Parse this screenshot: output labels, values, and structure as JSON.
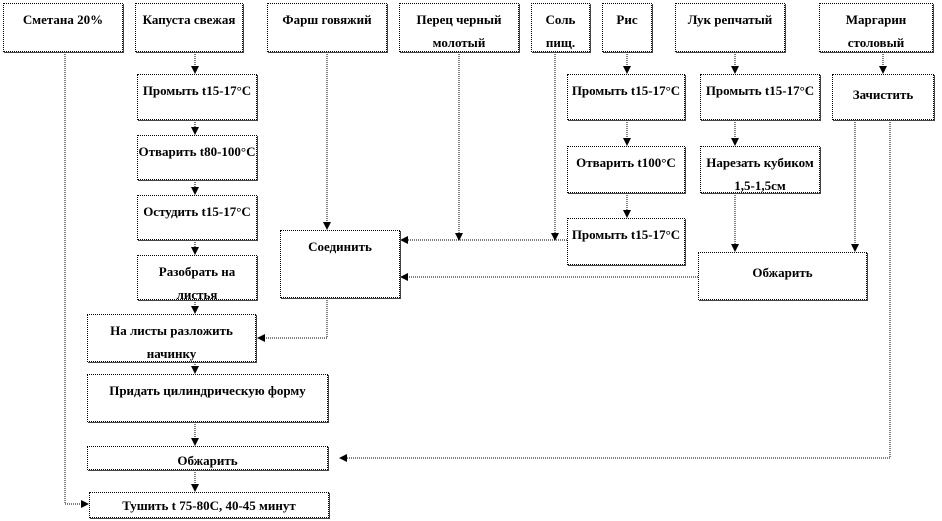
{
  "ingredients": {
    "smetana": "Сметана 20%",
    "kapusta": "Капуста свежая",
    "farsh": "Фарш говяжий",
    "perec": "Перец черный молотый",
    "sol": "Соль пищ.",
    "ris": "Рис",
    "luk": "Лук репчатый",
    "margarin": "Маргарин столовый"
  },
  "cabbage_steps": [
    "Промыть t15-17°С",
    "Отварить t80-100°С",
    "Остудить  t15-17°С",
    "Разобрать на листья"
  ],
  "rice_steps": [
    "Промыть t15-17°С",
    "Отварить t100°С",
    "Промыть t15-17°С"
  ],
  "onion_steps": [
    "Промыть t15-17°С",
    "Нарезать кубиком 1,5-1,5см",
    "Обжарить"
  ],
  "margarine_steps": [
    "Зачистить"
  ],
  "combine": "Соединить",
  "main_steps": [
    "На листы разложить начинку",
    "Придать цилиндрическую форму",
    "Обжарить",
    "Тушить  t 75-80С, 40-45 минут"
  ]
}
